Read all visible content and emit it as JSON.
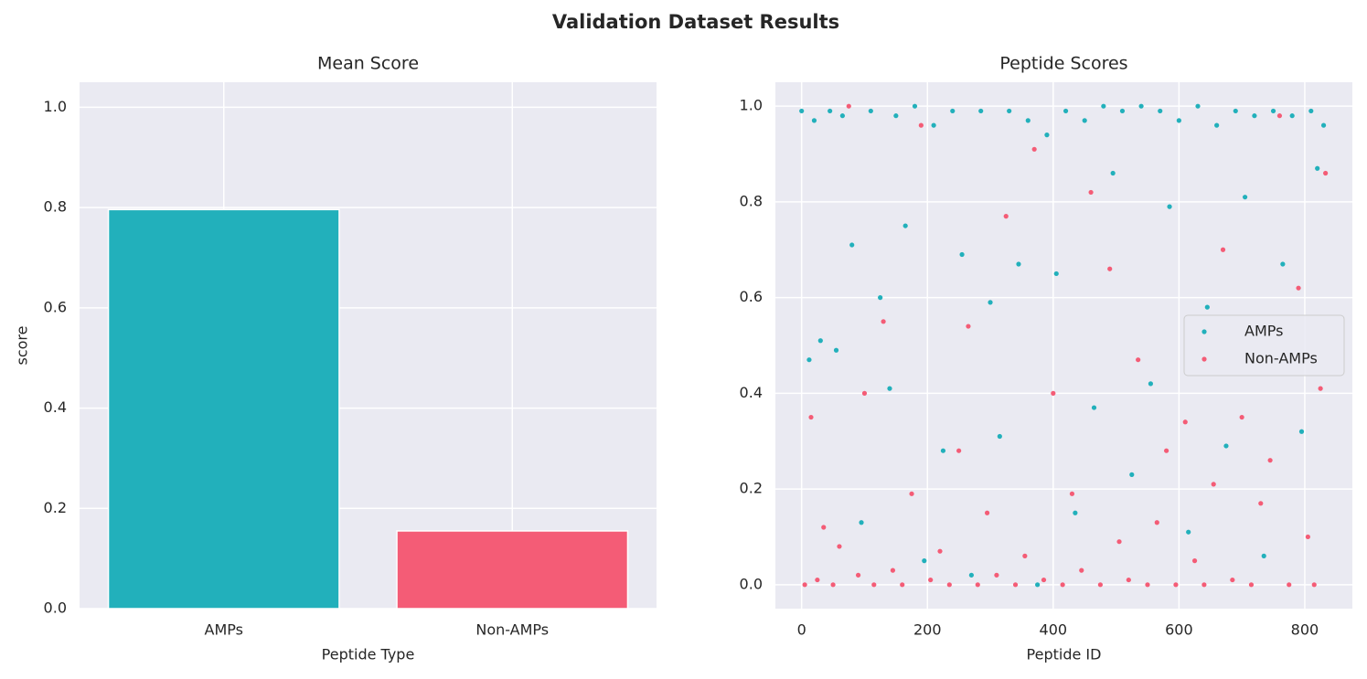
{
  "title": "Validation Dataset Results",
  "chart_data": [
    {
      "type": "bar",
      "title": "Mean Score",
      "xlabel": "Peptide Type",
      "ylabel": "score",
      "categories": [
        "AMPs",
        "Non-AMPs"
      ],
      "values": [
        0.796,
        0.155
      ],
      "colors": [
        "#22b0bb",
        "#f45c76"
      ],
      "ylim": [
        0,
        1.05
      ],
      "yticks": [
        {
          "value": 0,
          "label": "0.0"
        },
        0.2,
        0.4,
        0.6,
        0.8,
        {
          "value": 1,
          "label": "1.0"
        }
      ],
      "grid": true
    },
    {
      "type": "scatter",
      "title": "Peptide Scores",
      "xlabel": "Peptide ID",
      "xlim": [
        -41.7,
        875.7
      ],
      "xticks": [
        0,
        200,
        400,
        600,
        800
      ],
      "ylim": [
        -0.05,
        1.05
      ],
      "yticks": [
        {
          "value": 0,
          "label": "0.0"
        },
        0.2,
        0.4,
        0.6,
        0.8,
        {
          "value": 1,
          "label": "1.0"
        }
      ],
      "grid": true,
      "legend": "center right",
      "series": [
        {
          "name": "AMPs",
          "color": "#22b0bb",
          "x": [
            0,
            12,
            20,
            30,
            45,
            55,
            65,
            80,
            95,
            110,
            125,
            140,
            150,
            165,
            180,
            195,
            210,
            225,
            240,
            255,
            270,
            285,
            300,
            315,
            330,
            345,
            360,
            375,
            390,
            405,
            420,
            435,
            450,
            465,
            480,
            495,
            510,
            525,
            540,
            555,
            570,
            585,
            600,
            615,
            630,
            645,
            660,
            675,
            690,
            705,
            720,
            735,
            750,
            765,
            780,
            795,
            810,
            820,
            830
          ],
          "values": [
            0.99,
            0.47,
            0.97,
            0.51,
            0.99,
            0.49,
            0.98,
            0.71,
            0.13,
            0.99,
            0.6,
            0.41,
            0.98,
            0.75,
            1.0,
            0.05,
            0.96,
            0.28,
            0.99,
            0.69,
            0.02,
            0.99,
            0.59,
            0.31,
            0.99,
            0.67,
            0.97,
            0.0,
            0.94,
            0.65,
            0.99,
            0.15,
            0.97,
            0.37,
            1.0,
            0.86,
            0.99,
            0.23,
            1.0,
            0.42,
            0.99,
            0.79,
            0.97,
            0.11,
            1.0,
            0.58,
            0.96,
            0.29,
            0.99,
            0.81,
            0.98,
            0.06,
            0.99,
            0.67,
            0.98,
            0.32,
            0.99,
            0.87,
            0.96
          ]
        },
        {
          "name": "Non-AMPs",
          "color": "#f45c76",
          "x": [
            5,
            15,
            25,
            35,
            50,
            60,
            75,
            90,
            100,
            115,
            130,
            145,
            160,
            175,
            190,
            205,
            220,
            235,
            250,
            265,
            280,
            295,
            310,
            325,
            340,
            355,
            370,
            385,
            400,
            415,
            430,
            445,
            460,
            475,
            490,
            505,
            520,
            535,
            550,
            565,
            580,
            595,
            610,
            625,
            640,
            655,
            670,
            685,
            700,
            715,
            730,
            745,
            760,
            775,
            790,
            805,
            815,
            825,
            833
          ],
          "values": [
            0.0,
            0.35,
            0.01,
            0.12,
            0.0,
            0.08,
            1.0,
            0.02,
            0.4,
            0.0,
            0.55,
            0.03,
            0.0,
            0.19,
            0.96,
            0.01,
            0.07,
            0.0,
            0.28,
            0.54,
            0.0,
            0.15,
            0.02,
            0.77,
            0.0,
            0.06,
            0.91,
            0.01,
            0.4,
            0.0,
            0.19,
            0.03,
            0.82,
            0.0,
            0.66,
            0.09,
            0.01,
            0.47,
            0.0,
            0.13,
            0.28,
            0.0,
            0.34,
            0.05,
            0.0,
            0.21,
            0.7,
            0.01,
            0.35,
            0.0,
            0.17,
            0.26,
            0.98,
            0.0,
            0.62,
            0.1,
            0.0,
            0.41,
            0.86
          ]
        }
      ]
    }
  ]
}
